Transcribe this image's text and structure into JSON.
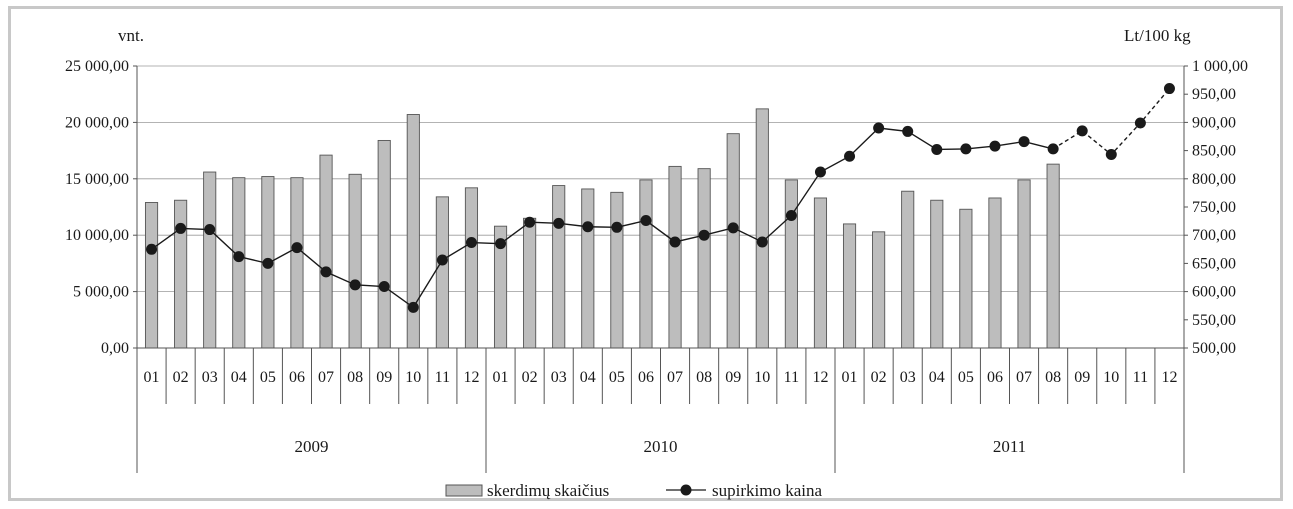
{
  "chart_data": {
    "type": "bar+line",
    "grid": "horizontal",
    "legend_position": "bottom-center",
    "left_axis": {
      "unit_label": "vnt.",
      "ylim": [
        0,
        25000
      ],
      "ticks": [
        0,
        5000,
        10000,
        15000,
        20000,
        25000
      ],
      "tick_labels": [
        "0,00",
        "5 000,00",
        "10 000,00",
        "15 000,00",
        "20 000,00",
        "25 000,00"
      ]
    },
    "right_axis": {
      "unit_label": "Lt/100 kg",
      "ylim": [
        500,
        1000
      ],
      "ticks": [
        500,
        550,
        600,
        650,
        700,
        750,
        800,
        850,
        900,
        950,
        1000
      ],
      "tick_labels": [
        "500,00",
        "550,00",
        "600,00",
        "650,00",
        "700,00",
        "750,00",
        "800,00",
        "850,00",
        "900,00",
        "950,00",
        "1 000,00"
      ]
    },
    "months": [
      "01",
      "02",
      "03",
      "04",
      "05",
      "06",
      "07",
      "08",
      "09",
      "10",
      "11",
      "12",
      "01",
      "02",
      "03",
      "04",
      "05",
      "06",
      "07",
      "08",
      "09",
      "10",
      "11",
      "12",
      "01",
      "02",
      "03",
      "04",
      "05",
      "06",
      "07",
      "08",
      "09",
      "10",
      "11",
      "12"
    ],
    "years": [
      "2009",
      "2010",
      "2011"
    ],
    "series": [
      {
        "name": "skerdimų skaičius",
        "type": "bar",
        "axis": "left",
        "color": "#bdbdbd",
        "values": [
          12900,
          13100,
          15600,
          15100,
          15200,
          15100,
          17100,
          15400,
          18400,
          20700,
          13400,
          14200,
          10800,
          11500,
          14400,
          14100,
          13800,
          14900,
          16100,
          15900,
          19000,
          21200,
          14900,
          13300,
          11000,
          10300,
          13900,
          13100,
          12300,
          13300,
          14900,
          16300,
          null,
          null,
          null,
          null
        ]
      },
      {
        "name": "supirkimo kaina",
        "type": "line",
        "axis": "right",
        "color": "#1a1a1a",
        "values": [
          675,
          712,
          710,
          662,
          650,
          678,
          635,
          612,
          609,
          572,
          656,
          687,
          685,
          723,
          721,
          715,
          714,
          726,
          688,
          700,
          713,
          688,
          735,
          812,
          840,
          890,
          884,
          852,
          853,
          858,
          866,
          853,
          885,
          843,
          899,
          960
        ],
        "dashed_from_index": 31
      }
    ]
  }
}
